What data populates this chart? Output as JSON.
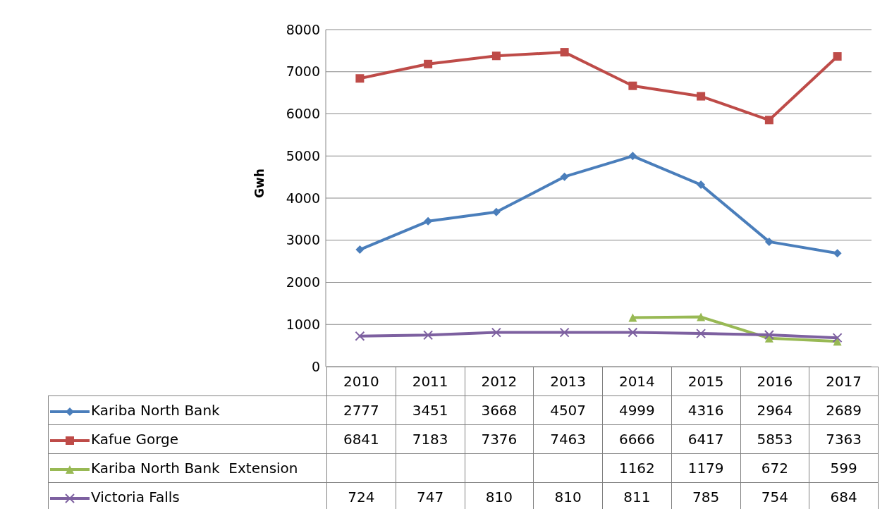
{
  "chart_data": {
    "type": "line",
    "ylabel": "Gwh",
    "categories": [
      "2010",
      "2011",
      "2012",
      "2013",
      "2014",
      "2015",
      "2016",
      "2017"
    ],
    "series": [
      {
        "name": "Kariba North Bank",
        "color": "#4a7ebb",
        "marker": "diamond",
        "values": [
          2777,
          3451,
          3668,
          4507,
          4999,
          4316,
          2964,
          2689
        ]
      },
      {
        "name": "Kafue Gorge",
        "color": "#be4b48",
        "marker": "square",
        "values": [
          6841,
          7183,
          7376,
          7463,
          6666,
          6417,
          5853,
          7363
        ]
      },
      {
        "name": "Kariba North Bank  Extension",
        "color": "#98b954",
        "marker": "triangle",
        "values": [
          null,
          null,
          null,
          null,
          1162,
          1179,
          672,
          599
        ]
      },
      {
        "name": "Victoria Falls",
        "color": "#7d60a0",
        "marker": "cross",
        "values": [
          724,
          747,
          810,
          810,
          811,
          785,
          754,
          684
        ]
      }
    ],
    "ylim": [
      0,
      8000
    ],
    "yticks": [
      0,
      1000,
      2000,
      3000,
      4000,
      5000,
      6000,
      7000,
      8000
    ],
    "grid": "y",
    "legend": "bottom",
    "data_labels": true,
    "line_style": "solid"
  }
}
